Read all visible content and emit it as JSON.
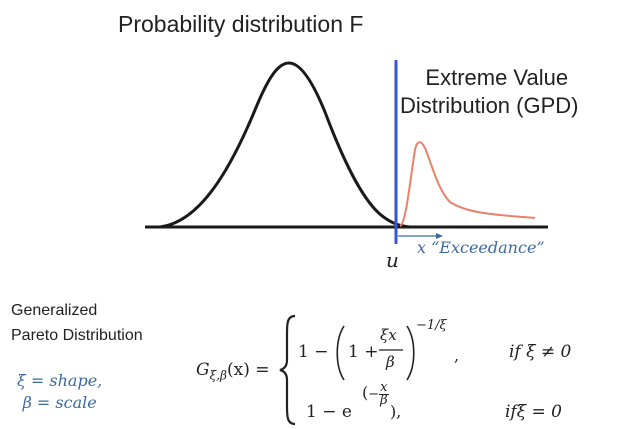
{
  "diagram": {
    "title": "Probability distribution F",
    "right_title_line1": "Extreme Value",
    "right_title_line2": "Distribution (GPD)",
    "threshold_label": "u",
    "exceedance_label": "x  “Exceedance”",
    "colors": {
      "main_curve": "#1a1a1a",
      "threshold_line": "#3355d6",
      "gpd_curve": "#e8826a",
      "annotation": "#3b6aa0"
    }
  },
  "formula": {
    "name_line1": "Generalized",
    "name_line2": "Pareto Distribution",
    "param_line1": "ξ = shape,",
    "param_line2": "β = scale",
    "lhs": "G",
    "lhs_sub": "ξ,β",
    "lhs_arg": "(x) =",
    "case1_lead": "1 −",
    "case1_inner_one": "1 +",
    "case1_num": "ξx",
    "case1_den": "β",
    "case1_exp": "−1/ξ",
    "case1_comma": ",",
    "case1_cond": "if ξ ≠ 0",
    "case2_lead": "1 − e",
    "case2_exp_num": "x",
    "case2_exp_den": "β",
    "case2_exp_minus": "−",
    "case2_comma": "),",
    "case2_cond": "ifξ = 0"
  }
}
